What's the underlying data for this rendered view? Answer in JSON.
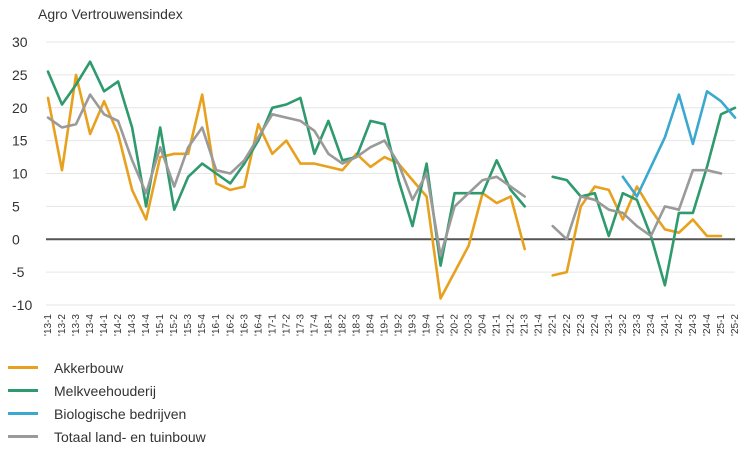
{
  "chart_data": {
    "type": "line",
    "title": "Agro Vertrouwensindex",
    "ylim": [
      -10,
      30
    ],
    "yticks": [
      -10,
      -5,
      0,
      5,
      10,
      15,
      20,
      25,
      30
    ],
    "categories": [
      "'13-1",
      "'13-2",
      "'13-3",
      "'13-4",
      "'14-1",
      "'14-2",
      "'14-3",
      "'14-4",
      "'15-1",
      "'15-2",
      "'15-3",
      "'15-4",
      "'16-1",
      "'16-2",
      "'16-3",
      "'16-4",
      "'17-1",
      "'17-2",
      "'17-3",
      "'17-4",
      "'18-1",
      "'18-2",
      "'18-3",
      "'18-4",
      "'19-1",
      "'19-2",
      "'19-3",
      "'19-4",
      "'20-1",
      "'20-2",
      "'20-3",
      "'20-4",
      "'21-1",
      "'21-2",
      "'21-3",
      "'21-4",
      "'22-1",
      "'22-2",
      "'22-3",
      "'22-4",
      "'23-1",
      "'23-2",
      "'23-3",
      "'23-4",
      "'24-1",
      "'24-2",
      "'24-3",
      "'24-4",
      "'25-1",
      "'25-2"
    ],
    "series": [
      {
        "name": "Akkerbouw",
        "color": "#e7a11e",
        "values": [
          21.5,
          10.5,
          25,
          16,
          21,
          16,
          7.5,
          3,
          12.5,
          13,
          13,
          22,
          8.5,
          7.5,
          8,
          17.5,
          13,
          15,
          11.5,
          11.5,
          11,
          10.5,
          13,
          11,
          12.5,
          11.5,
          9,
          6.5,
          -9,
          -5,
          -1,
          7,
          5.5,
          6.5,
          -1.5,
          null,
          -5.5,
          -5,
          5,
          8,
          7.5,
          3,
          8,
          4.5,
          1.5,
          1,
          3,
          0.5,
          0.5,
          null
        ]
      },
      {
        "name": "Melkveehouderij",
        "color": "#2e9a6e",
        "values": [
          25.5,
          20.5,
          23.5,
          27,
          22.5,
          24,
          17,
          5,
          17,
          4.5,
          9.5,
          11.5,
          10,
          8.5,
          11.5,
          15,
          20,
          20.5,
          21.5,
          13,
          18,
          12,
          12.5,
          18,
          17.5,
          9,
          2,
          11.5,
          -4,
          7,
          7,
          7,
          12,
          7.5,
          5,
          null,
          9.5,
          9,
          6.5,
          7,
          0.5,
          7,
          6,
          0.5,
          -7,
          4,
          4,
          11,
          19,
          20
        ]
      },
      {
        "name": "Biologische bedrijven",
        "color": "#3aa8cf",
        "values": [
          null,
          null,
          null,
          null,
          null,
          null,
          null,
          null,
          null,
          null,
          null,
          null,
          null,
          null,
          null,
          null,
          null,
          null,
          null,
          null,
          null,
          null,
          null,
          null,
          null,
          null,
          null,
          null,
          null,
          null,
          null,
          null,
          null,
          null,
          null,
          null,
          null,
          null,
          null,
          null,
          null,
          9.5,
          6.5,
          11,
          15.5,
          22,
          14.5,
          22.5,
          21,
          18.5
        ]
      },
      {
        "name": "Totaal land- en tuinbouw",
        "color": "#9a9a9a",
        "values": [
          18.5,
          17,
          17.5,
          22,
          19,
          18,
          12,
          7,
          14,
          8,
          14,
          17,
          10.5,
          10,
          12,
          15.5,
          19,
          18.5,
          18,
          16.5,
          13,
          11.5,
          12.5,
          14,
          15,
          11.5,
          6,
          10,
          -2.5,
          5,
          7,
          9,
          9.5,
          8,
          6.5,
          null,
          2,
          0,
          6.5,
          6,
          4.5,
          4,
          2,
          0.5,
          5,
          4.5,
          10.5,
          10.5,
          10,
          null
        ]
      }
    ]
  }
}
